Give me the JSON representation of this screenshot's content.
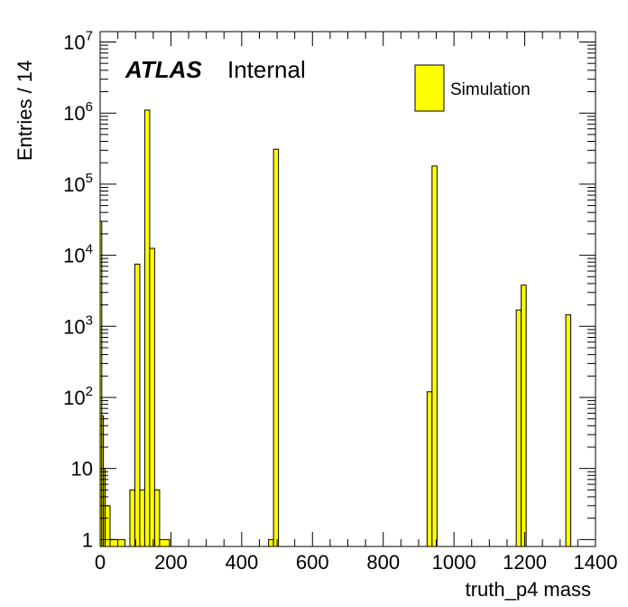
{
  "chart_data": {
    "type": "bar",
    "xlabel": "truth_p4 mass",
    "ylabel": "Entries / 14",
    "xlim": [
      0,
      1400
    ],
    "ylim": [
      0.8,
      14000000
    ],
    "yscale": "log",
    "bin_width": 14,
    "x_ticks": [
      0,
      200,
      400,
      600,
      800,
      1000,
      1200,
      1400
    ],
    "y_ticks": [
      {
        "value": 1,
        "base": "1",
        "exp": ""
      },
      {
        "value": 10,
        "base": "10",
        "exp": ""
      },
      {
        "value": 100,
        "base": "10",
        "exp": "2"
      },
      {
        "value": 1000,
        "base": "10",
        "exp": "3"
      },
      {
        "value": 10000,
        "base": "10",
        "exp": "4"
      },
      {
        "value": 100000,
        "base": "10",
        "exp": "5"
      },
      {
        "value": 1000000,
        "base": "10",
        "exp": "6"
      },
      {
        "value": 10000000,
        "base": "10",
        "exp": "7"
      }
    ],
    "bins": [
      {
        "x0": 0,
        "x1": 4.7,
        "value": 30000
      },
      {
        "x0": 4.7,
        "x1": 9.3,
        "value": 55
      },
      {
        "x0": 9.3,
        "x1": 14,
        "value": 10
      },
      {
        "x0": 14,
        "x1": 28,
        "value": 3
      },
      {
        "x0": 28,
        "x1": 70,
        "value": 1
      },
      {
        "x0": 84,
        "x1": 98,
        "value": 5
      },
      {
        "x0": 98,
        "x1": 112,
        "value": 7500
      },
      {
        "x0": 112,
        "x1": 126,
        "value": 5
      },
      {
        "x0": 126,
        "x1": 140,
        "value": 1100000
      },
      {
        "x0": 140,
        "x1": 154,
        "value": 12500
      },
      {
        "x0": 154,
        "x1": 168,
        "value": 5
      },
      {
        "x0": 168,
        "x1": 196,
        "value": 1
      },
      {
        "x0": 476,
        "x1": 490,
        "value": 1
      },
      {
        "x0": 490,
        "x1": 504,
        "value": 310000
      },
      {
        "x0": 924,
        "x1": 938,
        "value": 120
      },
      {
        "x0": 938,
        "x1": 952,
        "value": 180000
      },
      {
        "x0": 1176,
        "x1": 1190,
        "value": 1700
      },
      {
        "x0": 1190,
        "x1": 1204,
        "value": 3800
      },
      {
        "x0": 1316,
        "x1": 1330,
        "value": 1450
      }
    ],
    "series": [
      {
        "name": "Simulation",
        "color": "#ffff00"
      }
    ],
    "legend_position": "top-right",
    "grid": false
  },
  "atlas_label": "ATLAS",
  "atlas_status": "Internal",
  "colors": {
    "fill": "#ffff00",
    "line": "#000000",
    "background": "#ffffff"
  }
}
